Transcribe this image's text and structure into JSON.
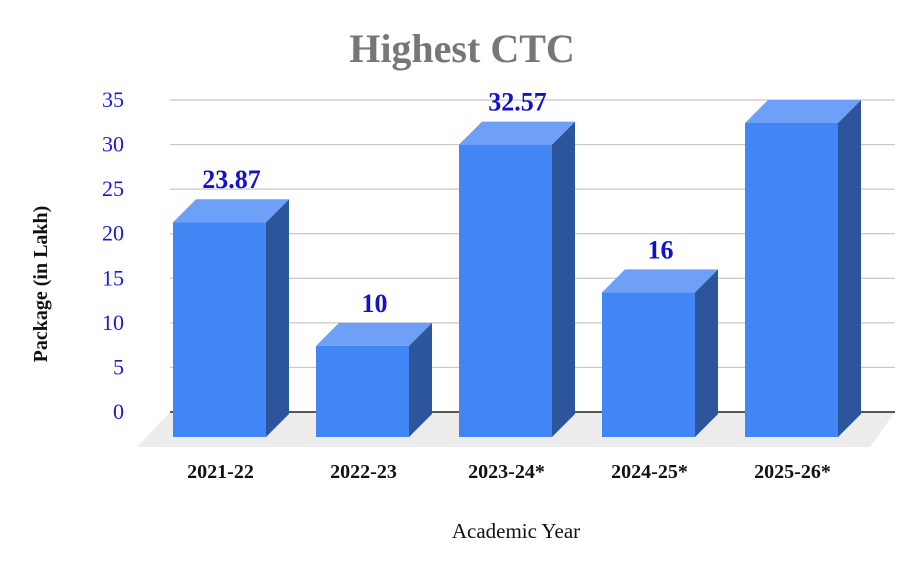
{
  "chart_data": {
    "type": "bar",
    "title": "Highest CTC",
    "xlabel": "Academic Year",
    "ylabel": "Package (in Lakh)",
    "categories": [
      "2021-22",
      "2022-23",
      "2023-24*",
      "2024-25*",
      "2025-26*"
    ],
    "values": [
      23.87,
      10,
      32.57,
      16,
      35
    ],
    "data_labels": [
      "23.87",
      "10",
      "32.57",
      "16",
      ""
    ],
    "yticks": [
      "0",
      "5",
      "10",
      "15",
      "20",
      "25",
      "30",
      "35"
    ],
    "ylim": [
      0,
      35
    ],
    "grid": true,
    "legend": "none",
    "style": "3d",
    "colors": {
      "bar_front": "#4285f4",
      "bar_top": "#6fa0f7",
      "bar_side": "#2c559c",
      "grid": "#c8c8c8",
      "floor": "#ececec",
      "tick_text": "#1a1ad6",
      "data_label": "#1212cc",
      "title": "#777777"
    }
  }
}
